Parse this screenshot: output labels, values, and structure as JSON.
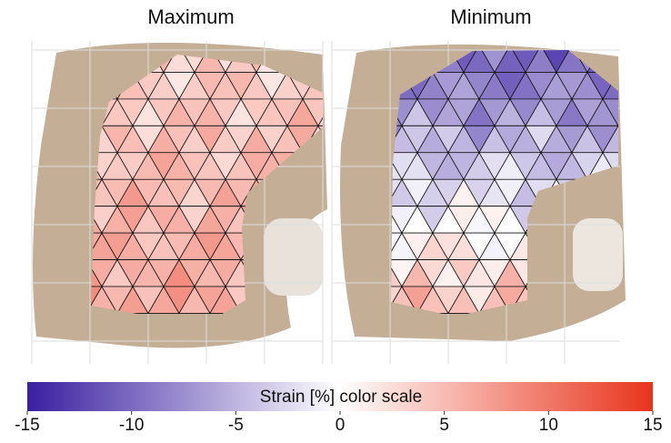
{
  "chart_data": {
    "type": "colorbar",
    "panels": [
      {
        "title": "Maximum"
      },
      {
        "title": "Minimum"
      }
    ],
    "colorbar": {
      "label": "Strain [%] color scale",
      "lim": [
        -15,
        15
      ],
      "ticks": [
        -15,
        -10,
        -5,
        0,
        5,
        10,
        15
      ],
      "colors": [
        "#3a1fa0",
        "#ffffff",
        "#e8341c"
      ]
    }
  }
}
